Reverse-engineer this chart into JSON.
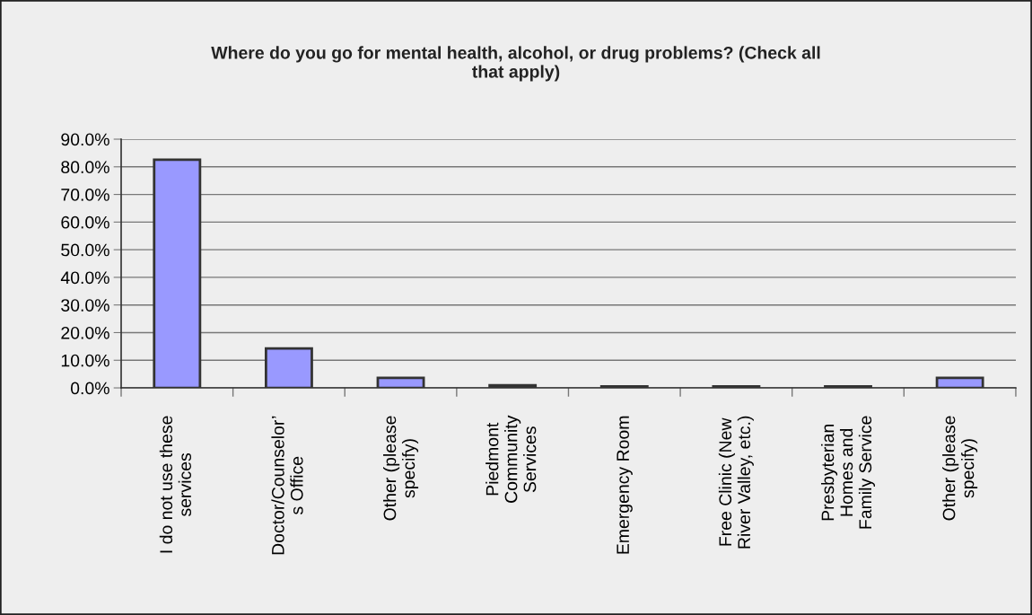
{
  "chart_data": {
    "type": "bar",
    "title": "Where do you go for mental health, alcohol, or drug problems? (Check all\nthat apply)",
    "categories": [
      "I do not use these\nservices",
      "Doctor/Counselor’\ns Office",
      "Other (please\nspecify)",
      "Piedmont\nCommunity\nServices",
      "Emergency Room",
      "Free Clinic (New\nRiver Valley, etc.)",
      "Presbyterian\nHomes and\nFamily Service",
      "Other (please\nspecify)"
    ],
    "values": [
      82.6,
      14.3,
      3.6,
      0.9,
      0.5,
      0.5,
      0.5,
      3.6
    ],
    "color": "#9999ff",
    "ylim": [
      0,
      90
    ],
    "yticks": [
      {
        "value": 0,
        "label": "0.0%"
      },
      {
        "value": 10,
        "label": "10.0%"
      },
      {
        "value": 20,
        "label": "20.0%"
      },
      {
        "value": 30,
        "label": "30.0%"
      },
      {
        "value": 40,
        "label": "40.0%"
      },
      {
        "value": 50,
        "label": "50.0%"
      },
      {
        "value": 60,
        "label": "60.0%"
      },
      {
        "value": 70,
        "label": "70.0%"
      },
      {
        "value": 80,
        "label": "80.0%"
      },
      {
        "value": 90,
        "label": "90.0%"
      }
    ],
    "grid": "y"
  }
}
